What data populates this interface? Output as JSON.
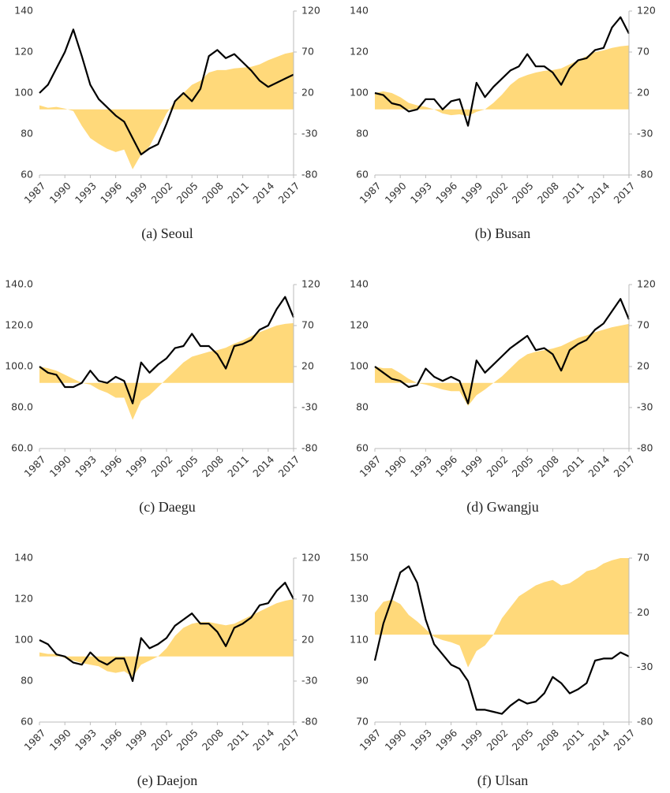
{
  "chart_data": [
    {
      "type": "line",
      "title": "(a) Seoul",
      "x": [
        1987,
        1988,
        1989,
        1990,
        1991,
        1992,
        1993,
        1994,
        1995,
        1996,
        1997,
        1998,
        1999,
        2000,
        2001,
        2002,
        2003,
        2004,
        2005,
        2006,
        2007,
        2008,
        2009,
        2010,
        2011,
        2012,
        2013,
        2014,
        2015,
        2016,
        2017
      ],
      "xlim": [
        1987,
        2017
      ],
      "xticks": [
        1987,
        1990,
        1993,
        1996,
        1999,
        2002,
        2005,
        2008,
        2011,
        2014,
        2017
      ],
      "ylim": [
        60,
        140
      ],
      "yticks": [
        60,
        80,
        100,
        120,
        140
      ],
      "y2lim": [
        -80,
        120
      ],
      "y2ticks": [
        -80,
        -30,
        20,
        70,
        120
      ],
      "series": [
        {
          "type": "area",
          "axis": "y2",
          "color": "#ffd97a",
          "values": [
            5,
            2,
            3,
            1,
            -2,
            -20,
            -35,
            -42,
            -48,
            -52,
            -49,
            -73,
            -55,
            -45,
            -25,
            -5,
            10,
            20,
            30,
            35,
            45,
            48,
            48,
            50,
            51,
            52,
            55,
            60,
            64,
            68,
            70
          ]
        },
        {
          "type": "line",
          "color": "#000000",
          "values": [
            100,
            104,
            112,
            120,
            131,
            118,
            104,
            97,
            93,
            89,
            86,
            78,
            70,
            73,
            75,
            85,
            96,
            100,
            96,
            102,
            118,
            121,
            117,
            119,
            115,
            111,
            106,
            103,
            105,
            107,
            109
          ]
        }
      ]
    },
    {
      "type": "line",
      "title": "(b) Busan",
      "x": [
        1987,
        1988,
        1989,
        1990,
        1991,
        1992,
        1993,
        1994,
        1995,
        1996,
        1997,
        1998,
        1999,
        2000,
        2001,
        2002,
        2003,
        2004,
        2005,
        2006,
        2007,
        2008,
        2009,
        2010,
        2011,
        2012,
        2013,
        2014,
        2015,
        2016,
        2017
      ],
      "xlim": [
        1987,
        2017
      ],
      "xticks": [
        1987,
        1990,
        1993,
        1996,
        1999,
        2002,
        2005,
        2008,
        2011,
        2014,
        2017
      ],
      "ylim": [
        60,
        140
      ],
      "yticks": [
        60,
        80,
        100,
        120,
        140
      ],
      "y2lim": [
        -80,
        120
      ],
      "y2ticks": [
        -80,
        -30,
        20,
        70,
        120
      ],
      "series": [
        {
          "type": "area",
          "axis": "y2",
          "color": "#ffd97a",
          "values": [
            20,
            22,
            20,
            15,
            8,
            5,
            3,
            0,
            -5,
            -7,
            -6,
            -8,
            -3,
            0,
            8,
            18,
            30,
            38,
            42,
            45,
            47,
            48,
            50,
            55,
            60,
            65,
            70,
            72,
            75,
            77,
            78
          ]
        },
        {
          "type": "line",
          "color": "#000000",
          "values": [
            100,
            99,
            95,
            94,
            91,
            92,
            97,
            97,
            92,
            96,
            97,
            84,
            105,
            98,
            103,
            107,
            111,
            113,
            119,
            113,
            113,
            110,
            104,
            112,
            116,
            117,
            121,
            122,
            132,
            137,
            129
          ]
        }
      ]
    },
    {
      "type": "line",
      "title": "(c) Daegu",
      "x": [
        1987,
        1988,
        1989,
        1990,
        1991,
        1992,
        1993,
        1994,
        1995,
        1996,
        1997,
        1998,
        1999,
        2000,
        2001,
        2002,
        2003,
        2004,
        2005,
        2006,
        2007,
        2008,
        2009,
        2010,
        2011,
        2012,
        2013,
        2014,
        2015,
        2016,
        2017
      ],
      "xlim": [
        1987,
        2017
      ],
      "xticks": [
        1987,
        1990,
        1993,
        1996,
        1999,
        2002,
        2005,
        2008,
        2011,
        2014,
        2017
      ],
      "ylim": [
        60,
        140
      ],
      "yticks": [
        {
          "value": 60,
          "label": "60.0"
        },
        {
          "value": 80,
          "label": "80.0"
        },
        {
          "value": 100,
          "label": "100.0"
        },
        {
          "value": 120,
          "label": "120.0"
        },
        {
          "value": 140,
          "label": "140.0"
        }
      ],
      "y2lim": [
        -80,
        120
      ],
      "y2ticks": [
        -80,
        -30,
        20,
        70,
        120
      ],
      "series": [
        {
          "type": "area",
          "axis": "y2",
          "color": "#ffd97a",
          "values": [
            20,
            18,
            15,
            10,
            5,
            0,
            -2,
            -8,
            -12,
            -18,
            -18,
            -45,
            -22,
            -15,
            -5,
            5,
            15,
            25,
            32,
            35,
            38,
            40,
            43,
            48,
            52,
            57,
            62,
            66,
            70,
            72,
            73
          ]
        },
        {
          "type": "line",
          "color": "#000000",
          "values": [
            100,
            97,
            96,
            90,
            90,
            92,
            98,
            93,
            92,
            95,
            93,
            82,
            102,
            97,
            101,
            104,
            109,
            110,
            116,
            110,
            110,
            106,
            99,
            110,
            111,
            113,
            118,
            120,
            128,
            134,
            124
          ]
        }
      ]
    },
    {
      "type": "line",
      "title": "(d) Gwangju",
      "x": [
        1987,
        1988,
        1989,
        1990,
        1991,
        1992,
        1993,
        1994,
        1995,
        1996,
        1997,
        1998,
        1999,
        2000,
        2001,
        2002,
        2003,
        2004,
        2005,
        2006,
        2007,
        2008,
        2009,
        2010,
        2011,
        2012,
        2013,
        2014,
        2015,
        2016,
        2017
      ],
      "xlim": [
        1987,
        2017
      ],
      "xticks": [
        1987,
        1990,
        1993,
        1996,
        1999,
        2002,
        2005,
        2008,
        2011,
        2014,
        2017
      ],
      "ylim": [
        60,
        140
      ],
      "yticks": [
        60,
        80,
        100,
        120,
        140
      ],
      "y2lim": [
        -80,
        120
      ],
      "y2ticks": [
        -80,
        -30,
        20,
        70,
        120
      ],
      "series": [
        {
          "type": "area",
          "axis": "y2",
          "color": "#ffd97a",
          "values": [
            20,
            18,
            18,
            12,
            5,
            0,
            -2,
            -5,
            -8,
            -10,
            -10,
            -28,
            -15,
            -8,
            0,
            8,
            18,
            28,
            35,
            38,
            40,
            42,
            45,
            50,
            55,
            58,
            62,
            65,
            68,
            70,
            72
          ]
        },
        {
          "type": "line",
          "color": "#000000",
          "values": [
            100,
            97,
            94,
            93,
            90,
            91,
            99,
            95,
            93,
            95,
            93,
            82,
            103,
            97,
            101,
            105,
            109,
            112,
            115,
            108,
            109,
            106,
            98,
            108,
            111,
            113,
            118,
            121,
            127,
            133,
            123
          ]
        }
      ]
    },
    {
      "type": "line",
      "title": "(e) Daejon",
      "x": [
        1987,
        1988,
        1989,
        1990,
        1991,
        1992,
        1993,
        1994,
        1995,
        1996,
        1997,
        1998,
        1999,
        2000,
        2001,
        2002,
        2003,
        2004,
        2005,
        2006,
        2007,
        2008,
        2009,
        2010,
        2011,
        2012,
        2013,
        2014,
        2015,
        2016,
        2017
      ],
      "xlim": [
        1987,
        2017
      ],
      "xticks": [
        1987,
        1990,
        1993,
        1996,
        1999,
        2002,
        2005,
        2008,
        2011,
        2014,
        2017
      ],
      "ylim": [
        60,
        140
      ],
      "yticks": [
        60,
        80,
        100,
        120,
        140
      ],
      "y2lim": [
        -80,
        120
      ],
      "y2ticks": [
        -80,
        -30,
        20,
        70,
        120
      ],
      "series": [
        {
          "type": "area",
          "axis": "y2",
          "color": "#ffd97a",
          "values": [
            5,
            3,
            3,
            -2,
            -5,
            -8,
            -10,
            -12,
            -18,
            -20,
            -18,
            -25,
            -10,
            -5,
            0,
            10,
            25,
            35,
            40,
            42,
            42,
            40,
            38,
            40,
            45,
            50,
            55,
            60,
            65,
            68,
            70
          ]
        },
        {
          "type": "line",
          "color": "#000000",
          "values": [
            100,
            98,
            93,
            92,
            89,
            88,
            94,
            90,
            88,
            91,
            91,
            80,
            101,
            96,
            98,
            101,
            107,
            110,
            113,
            108,
            108,
            104,
            97,
            106,
            108,
            111,
            117,
            118,
            124,
            128,
            120
          ]
        }
      ]
    },
    {
      "type": "line",
      "title": "(f) Ulsan",
      "x": [
        1987,
        1988,
        1989,
        1990,
        1991,
        1992,
        1993,
        1994,
        1995,
        1996,
        1997,
        1998,
        1999,
        2000,
        2001,
        2002,
        2003,
        2004,
        2005,
        2006,
        2007,
        2008,
        2009,
        2010,
        2011,
        2012,
        2013,
        2014,
        2015,
        2016,
        2017
      ],
      "xlim": [
        1987,
        2017
      ],
      "xticks": [
        1987,
        1990,
        1993,
        1996,
        1999,
        2002,
        2005,
        2008,
        2011,
        2014,
        2017
      ],
      "ylim": [
        70,
        150
      ],
      "yticks": [
        70,
        90,
        110,
        130,
        150
      ],
      "y2lim": [
        -80,
        70
      ],
      "y2ticks": [
        -80,
        -30,
        20,
        70
      ],
      "series": [
        {
          "type": "area",
          "axis": "y2",
          "color": "#ffd97a",
          "values": [
            20,
            30,
            32,
            28,
            18,
            12,
            5,
            -2,
            -5,
            -7,
            -10,
            -30,
            -15,
            -10,
            0,
            15,
            25,
            35,
            40,
            45,
            48,
            50,
            45,
            47,
            52,
            58,
            60,
            65,
            68,
            70,
            70
          ]
        },
        {
          "type": "line",
          "color": "#000000",
          "values": [
            100,
            118,
            130,
            143,
            146,
            138,
            120,
            108,
            103,
            98,
            96,
            90,
            76,
            76,
            75,
            74,
            78,
            81,
            79,
            80,
            84,
            92,
            89,
            84,
            86,
            89,
            100,
            101,
            101,
            104,
            102
          ]
        }
      ]
    }
  ]
}
